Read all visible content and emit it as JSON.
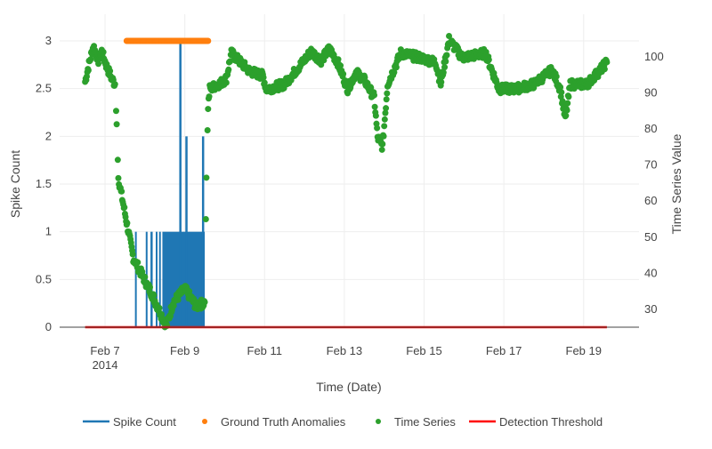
{
  "chart_data": {
    "type": "line",
    "xlabel": "Time (Date)",
    "ylabel": "Spike Count",
    "y2label": "Time Series Value",
    "ylim": [
      0,
      3.0
    ],
    "y2lim": [
      25.07,
      104.4
    ],
    "xlim": [
      "2014-02-05 20:40",
      "2014-02-20 09:20"
    ],
    "grid": true,
    "legend_position": "bottom",
    "x_ticks": [
      {
        "date": "2014-02-07",
        "label": "Feb 7",
        "sub": "2014"
      },
      {
        "date": "2014-02-09",
        "label": "Feb 9",
        "sub": ""
      },
      {
        "date": "2014-02-11",
        "label": "Feb 11",
        "sub": ""
      },
      {
        "date": "2014-02-13",
        "label": "Feb 13",
        "sub": ""
      },
      {
        "date": "2014-02-15",
        "label": "Feb 15",
        "sub": ""
      },
      {
        "date": "2014-02-17",
        "label": "Feb 17",
        "sub": ""
      },
      {
        "date": "2014-02-19",
        "label": "Feb 19",
        "sub": ""
      }
    ],
    "y_ticks": [
      "0",
      "0.5",
      "1",
      "1.5",
      "2",
      "2.5",
      "3"
    ],
    "y2_ticks": [
      "30",
      "40",
      "50",
      "60",
      "70",
      "80",
      "90",
      "100"
    ],
    "colors": {
      "spike": "#1f77b4",
      "ground_truth": "#ff7f0e",
      "series": "#2ca02c",
      "threshold": "#ff0000"
    },
    "series": [
      {
        "name": "Spike Count",
        "axis": "left",
        "kind": "line",
        "segments": [
          {
            "start": "2014-02-07 18:00",
            "end": "2014-02-07 18:20",
            "value": 1
          },
          {
            "start": "2014-02-08 00:30",
            "end": "2014-02-08 00:50",
            "value": 1
          },
          {
            "start": "2014-02-08 03:20",
            "end": "2014-02-08 04:40",
            "value": 1
          },
          {
            "start": "2014-02-08 06:30",
            "end": "2014-02-08 07:00",
            "value": 1
          },
          {
            "start": "2014-02-08 08:30",
            "end": "2014-02-08 09:30",
            "value": 1
          },
          {
            "start": "2014-02-08 10:30",
            "end": "2014-02-08 21:00",
            "value": 1
          },
          {
            "start": "2014-02-08 21:40",
            "end": "2014-02-09 12:00",
            "value": 1
          }
        ],
        "spikes": [
          {
            "date": "2014-02-08 21:20",
            "value": 3
          },
          {
            "date": "2014-02-09 01:00",
            "value": 2
          },
          {
            "date": "2014-02-09 11:00",
            "value": 2
          }
        ]
      },
      {
        "name": "Ground Truth Anomalies",
        "axis": "left",
        "kind": "markers",
        "start": "2014-02-07 13:00",
        "end": "2014-02-09 14:00",
        "value": 3
      },
      {
        "name": "Time Series",
        "axis": "right",
        "kind": "markers",
        "points": [
          [
            "2014-02-06 12:00",
            93.1
          ],
          [
            "2014-02-06 14:00",
            97.3
          ],
          [
            "2014-02-06 17:00",
            103
          ],
          [
            "2014-02-06 20:00",
            99
          ],
          [
            "2014-02-06 22:00",
            101.5
          ],
          [
            "2014-02-07 01:00",
            97.3
          ],
          [
            "2014-02-07 04:00",
            94
          ],
          [
            "2014-02-07 06:00",
            92.4
          ],
          [
            "2014-02-07 07:00",
            81.3
          ],
          [
            "2014-02-07 08:00",
            66.5
          ],
          [
            "2014-02-07 12:00",
            56.6
          ],
          [
            "2014-02-07 17:00",
            44.3
          ],
          [
            "2014-02-08 04:00",
            34.4
          ],
          [
            "2014-02-08 13:00",
            25.3
          ],
          [
            "2014-02-08 17:00",
            32
          ],
          [
            "2014-02-09 00:00",
            35.7
          ],
          [
            "2014-02-09 07:00",
            30.8
          ],
          [
            "2014-02-09 12:00",
            32
          ],
          [
            "2014-02-09 13:00",
            66.5
          ],
          [
            "2014-02-09 14:00",
            86.2
          ],
          [
            "2014-02-09 15:00",
            91.1
          ],
          [
            "2014-02-09 23:00",
            93.1
          ],
          [
            "2014-02-10 01:00",
            94
          ],
          [
            "2014-02-10 04:00",
            101
          ],
          [
            "2014-02-10 15:00",
            96
          ],
          [
            "2014-02-10 23:00",
            94.8
          ],
          [
            "2014-02-11 01:00",
            91
          ],
          [
            "2014-02-11 12:00",
            92.4
          ],
          [
            "2014-02-11 23:00",
            98.5
          ],
          [
            "2014-02-12 04:00",
            101.5
          ],
          [
            "2014-02-12 10:00",
            99
          ],
          [
            "2014-02-12 15:00",
            102.2
          ],
          [
            "2014-02-12 20:00",
            98.5
          ],
          [
            "2014-02-13 02:00",
            91.1
          ],
          [
            "2014-02-13 07:00",
            95.6
          ],
          [
            "2014-02-13 12:00",
            93.6
          ],
          [
            "2014-02-13 18:00",
            88.7
          ],
          [
            "2014-02-13 20:00",
            77.6
          ],
          [
            "2014-02-13 23:00",
            75.1
          ],
          [
            "2014-02-14 02:00",
            92.4
          ],
          [
            "2014-02-14 10:00",
            101
          ],
          [
            "2014-02-14 21:00",
            99.8
          ],
          [
            "2014-02-15 07:00",
            98.5
          ],
          [
            "2014-02-15 10:00",
            92.4
          ],
          [
            "2014-02-15 15:00",
            104.7
          ],
          [
            "2014-02-15 23:00",
            99.8
          ],
          [
            "2014-02-16 13:00",
            101
          ],
          [
            "2014-02-16 21:00",
            91.1
          ],
          [
            "2014-02-17 07:00",
            91.1
          ],
          [
            "2014-02-17 18:00",
            92.4
          ],
          [
            "2014-02-18 05:00",
            96.3
          ],
          [
            "2014-02-18 10:00",
            91.1
          ],
          [
            "2014-02-18 13:00",
            82.5
          ],
          [
            "2014-02-18 16:00",
            92.4
          ],
          [
            "2014-02-19 02:00",
            92.4
          ],
          [
            "2014-02-19 10:00",
            96.3
          ],
          [
            "2014-02-19 14:00",
            98.5
          ]
        ]
      },
      {
        "name": "Detection Threshold",
        "axis": "left",
        "kind": "line",
        "start": "2014-02-06 12:00",
        "end": "2014-02-19 14:00",
        "value": 0
      }
    ]
  }
}
